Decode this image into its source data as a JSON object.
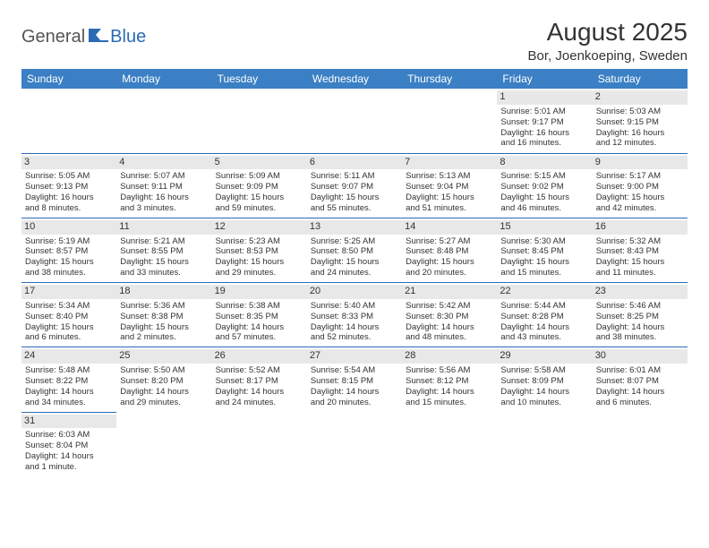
{
  "logo": {
    "text_general": "General",
    "text_blue": "Blue",
    "icon_color": "#2a6bb5"
  },
  "title": "August 2025",
  "location": "Bor, Joenkoeping, Sweden",
  "colors": {
    "header_bg": "#3b7fc4",
    "row_divider": "#2a6bb5",
    "daynum_bg": "#e8e8e8",
    "text": "#333333"
  },
  "day_headers": [
    "Sunday",
    "Monday",
    "Tuesday",
    "Wednesday",
    "Thursday",
    "Friday",
    "Saturday"
  ],
  "weeks": [
    [
      null,
      null,
      null,
      null,
      null,
      {
        "n": "1",
        "sr": "Sunrise: 5:01 AM",
        "ss": "Sunset: 9:17 PM",
        "d1": "Daylight: 16 hours",
        "d2": "and 16 minutes."
      },
      {
        "n": "2",
        "sr": "Sunrise: 5:03 AM",
        "ss": "Sunset: 9:15 PM",
        "d1": "Daylight: 16 hours",
        "d2": "and 12 minutes."
      }
    ],
    [
      {
        "n": "3",
        "sr": "Sunrise: 5:05 AM",
        "ss": "Sunset: 9:13 PM",
        "d1": "Daylight: 16 hours",
        "d2": "and 8 minutes."
      },
      {
        "n": "4",
        "sr": "Sunrise: 5:07 AM",
        "ss": "Sunset: 9:11 PM",
        "d1": "Daylight: 16 hours",
        "d2": "and 3 minutes."
      },
      {
        "n": "5",
        "sr": "Sunrise: 5:09 AM",
        "ss": "Sunset: 9:09 PM",
        "d1": "Daylight: 15 hours",
        "d2": "and 59 minutes."
      },
      {
        "n": "6",
        "sr": "Sunrise: 5:11 AM",
        "ss": "Sunset: 9:07 PM",
        "d1": "Daylight: 15 hours",
        "d2": "and 55 minutes."
      },
      {
        "n": "7",
        "sr": "Sunrise: 5:13 AM",
        "ss": "Sunset: 9:04 PM",
        "d1": "Daylight: 15 hours",
        "d2": "and 51 minutes."
      },
      {
        "n": "8",
        "sr": "Sunrise: 5:15 AM",
        "ss": "Sunset: 9:02 PM",
        "d1": "Daylight: 15 hours",
        "d2": "and 46 minutes."
      },
      {
        "n": "9",
        "sr": "Sunrise: 5:17 AM",
        "ss": "Sunset: 9:00 PM",
        "d1": "Daylight: 15 hours",
        "d2": "and 42 minutes."
      }
    ],
    [
      {
        "n": "10",
        "sr": "Sunrise: 5:19 AM",
        "ss": "Sunset: 8:57 PM",
        "d1": "Daylight: 15 hours",
        "d2": "and 38 minutes."
      },
      {
        "n": "11",
        "sr": "Sunrise: 5:21 AM",
        "ss": "Sunset: 8:55 PM",
        "d1": "Daylight: 15 hours",
        "d2": "and 33 minutes."
      },
      {
        "n": "12",
        "sr": "Sunrise: 5:23 AM",
        "ss": "Sunset: 8:53 PM",
        "d1": "Daylight: 15 hours",
        "d2": "and 29 minutes."
      },
      {
        "n": "13",
        "sr": "Sunrise: 5:25 AM",
        "ss": "Sunset: 8:50 PM",
        "d1": "Daylight: 15 hours",
        "d2": "and 24 minutes."
      },
      {
        "n": "14",
        "sr": "Sunrise: 5:27 AM",
        "ss": "Sunset: 8:48 PM",
        "d1": "Daylight: 15 hours",
        "d2": "and 20 minutes."
      },
      {
        "n": "15",
        "sr": "Sunrise: 5:30 AM",
        "ss": "Sunset: 8:45 PM",
        "d1": "Daylight: 15 hours",
        "d2": "and 15 minutes."
      },
      {
        "n": "16",
        "sr": "Sunrise: 5:32 AM",
        "ss": "Sunset: 8:43 PM",
        "d1": "Daylight: 15 hours",
        "d2": "and 11 minutes."
      }
    ],
    [
      {
        "n": "17",
        "sr": "Sunrise: 5:34 AM",
        "ss": "Sunset: 8:40 PM",
        "d1": "Daylight: 15 hours",
        "d2": "and 6 minutes."
      },
      {
        "n": "18",
        "sr": "Sunrise: 5:36 AM",
        "ss": "Sunset: 8:38 PM",
        "d1": "Daylight: 15 hours",
        "d2": "and 2 minutes."
      },
      {
        "n": "19",
        "sr": "Sunrise: 5:38 AM",
        "ss": "Sunset: 8:35 PM",
        "d1": "Daylight: 14 hours",
        "d2": "and 57 minutes."
      },
      {
        "n": "20",
        "sr": "Sunrise: 5:40 AM",
        "ss": "Sunset: 8:33 PM",
        "d1": "Daylight: 14 hours",
        "d2": "and 52 minutes."
      },
      {
        "n": "21",
        "sr": "Sunrise: 5:42 AM",
        "ss": "Sunset: 8:30 PM",
        "d1": "Daylight: 14 hours",
        "d2": "and 48 minutes."
      },
      {
        "n": "22",
        "sr": "Sunrise: 5:44 AM",
        "ss": "Sunset: 8:28 PM",
        "d1": "Daylight: 14 hours",
        "d2": "and 43 minutes."
      },
      {
        "n": "23",
        "sr": "Sunrise: 5:46 AM",
        "ss": "Sunset: 8:25 PM",
        "d1": "Daylight: 14 hours",
        "d2": "and 38 minutes."
      }
    ],
    [
      {
        "n": "24",
        "sr": "Sunrise: 5:48 AM",
        "ss": "Sunset: 8:22 PM",
        "d1": "Daylight: 14 hours",
        "d2": "and 34 minutes."
      },
      {
        "n": "25",
        "sr": "Sunrise: 5:50 AM",
        "ss": "Sunset: 8:20 PM",
        "d1": "Daylight: 14 hours",
        "d2": "and 29 minutes."
      },
      {
        "n": "26",
        "sr": "Sunrise: 5:52 AM",
        "ss": "Sunset: 8:17 PM",
        "d1": "Daylight: 14 hours",
        "d2": "and 24 minutes."
      },
      {
        "n": "27",
        "sr": "Sunrise: 5:54 AM",
        "ss": "Sunset: 8:15 PM",
        "d1": "Daylight: 14 hours",
        "d2": "and 20 minutes."
      },
      {
        "n": "28",
        "sr": "Sunrise: 5:56 AM",
        "ss": "Sunset: 8:12 PM",
        "d1": "Daylight: 14 hours",
        "d2": "and 15 minutes."
      },
      {
        "n": "29",
        "sr": "Sunrise: 5:58 AM",
        "ss": "Sunset: 8:09 PM",
        "d1": "Daylight: 14 hours",
        "d2": "and 10 minutes."
      },
      {
        "n": "30",
        "sr": "Sunrise: 6:01 AM",
        "ss": "Sunset: 8:07 PM",
        "d1": "Daylight: 14 hours",
        "d2": "and 6 minutes."
      }
    ],
    [
      {
        "n": "31",
        "sr": "Sunrise: 6:03 AM",
        "ss": "Sunset: 8:04 PM",
        "d1": "Daylight: 14 hours",
        "d2": "and 1 minute."
      },
      null,
      null,
      null,
      null,
      null,
      null
    ]
  ]
}
